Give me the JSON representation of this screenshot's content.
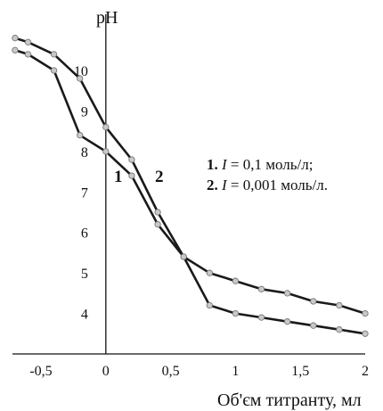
{
  "chart_data": {
    "type": "line",
    "xlabel": "Об'єм титранту, мл",
    "ylabel": "pH",
    "xlim": [
      -0.72,
      2.0
    ],
    "ylim": [
      3.0,
      11.3
    ],
    "x_ticks": [
      "-0,5",
      "0",
      "0,5",
      "1",
      "1,5",
      "2"
    ],
    "x_tick_values": [
      -0.5,
      0,
      0.5,
      1,
      1.5,
      2
    ],
    "y_ticks": [
      "4",
      "5",
      "6",
      "7",
      "8",
      "9",
      "10"
    ],
    "y_tick_values": [
      4,
      5,
      6,
      7,
      8,
      9,
      10
    ],
    "grid": false,
    "series": [
      {
        "name": "1",
        "x": [
          -0.7,
          -0.6,
          -0.4,
          -0.2,
          0.0,
          0.2,
          0.4,
          0.6,
          0.8,
          1.0,
          1.2,
          1.4,
          1.6,
          1.8,
          2.0
        ],
        "y": [
          10.5,
          10.4,
          10.0,
          8.4,
          8.0,
          7.4,
          6.2,
          5.4,
          4.2,
          4.0,
          3.9,
          3.8,
          3.7,
          3.6,
          3.5
        ]
      },
      {
        "name": "2",
        "x": [
          -0.7,
          -0.6,
          -0.4,
          -0.2,
          0.0,
          0.2,
          0.4,
          0.6,
          0.8,
          1.0,
          1.2,
          1.4,
          1.6,
          1.8,
          2.0
        ],
        "y": [
          10.8,
          10.7,
          10.4,
          9.8,
          8.6,
          7.8,
          6.5,
          5.4,
          5.0,
          4.8,
          4.6,
          4.5,
          4.3,
          4.2,
          4.0
        ]
      }
    ],
    "legend": {
      "placement": "right",
      "entries": [
        {
          "num": "1.",
          "symbol": "I",
          "text": " = 0,1 моль/л;"
        },
        {
          "num": "2.",
          "symbol": "I",
          "text": " = 0,001 моль/л."
        }
      ]
    },
    "colors": {
      "line": "#1a1a1a",
      "marker_fill": "#c9c9c9",
      "marker_stroke": "#777777",
      "axis": "#111111"
    }
  }
}
